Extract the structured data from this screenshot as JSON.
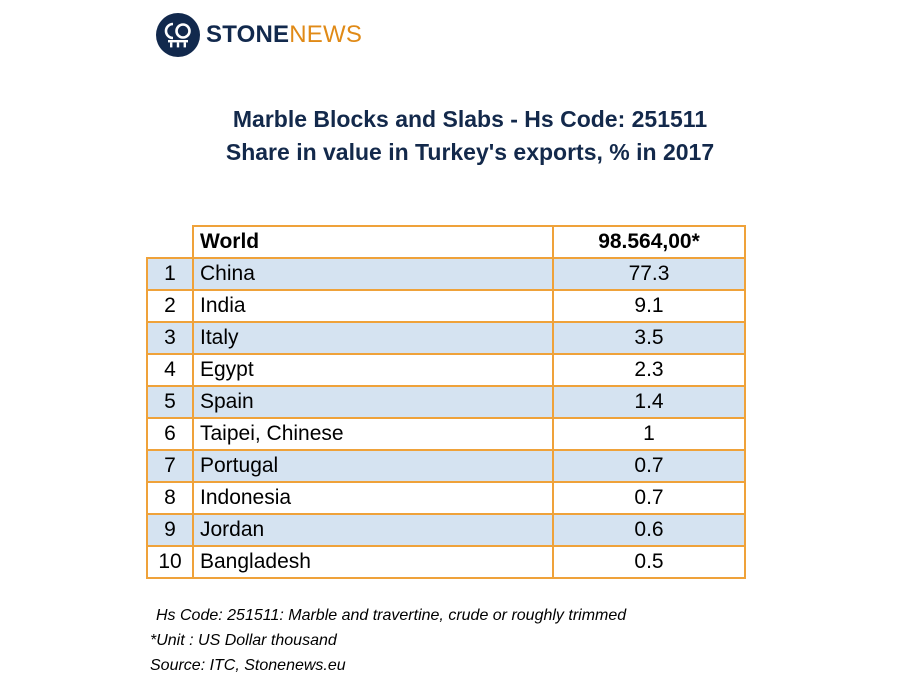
{
  "brand": {
    "name_part1": "STONE",
    "name_part2": "NEWS",
    "colors": {
      "navy": "#12294d",
      "orange": "#e08a17"
    },
    "icon": "stonenews-logo-icon"
  },
  "title": {
    "line1": "Marble Blocks and Slabs - Hs Code: 251511",
    "line2": "Share in value in Turkey's exports, % in 2017"
  },
  "table": {
    "header": {
      "rank": "",
      "country": "World",
      "value": "98.564,00*"
    },
    "rows": [
      {
        "rank": "1",
        "country": "China",
        "value": "77.3"
      },
      {
        "rank": "2",
        "country": "India",
        "value": "9.1"
      },
      {
        "rank": "3",
        "country": "Italy",
        "value": "3.5"
      },
      {
        "rank": "4",
        "country": "Egypt",
        "value": "2.3"
      },
      {
        "rank": "5",
        "country": "Spain",
        "value": "1.4"
      },
      {
        "rank": "6",
        "country": "Taipei, Chinese",
        "value": "1"
      },
      {
        "rank": "7",
        "country": "Portugal",
        "value": "0.7"
      },
      {
        "rank": "8",
        "country": "Indonesia",
        "value": "0.7"
      },
      {
        "rank": "9",
        "country": "Jordan",
        "value": "0.6"
      },
      {
        "rank": "10",
        "country": "Bangladesh",
        "value": "0.5"
      }
    ],
    "colors": {
      "border": "#efa23a",
      "shade": "#d5e3f1"
    }
  },
  "notes": {
    "hs_code": "Hs Code: 251511: Marble and travertine, crude or roughly trimmed",
    "unit": "*Unit : US Dollar thousand",
    "source": "Source: ITC, Stonenews.eu"
  }
}
